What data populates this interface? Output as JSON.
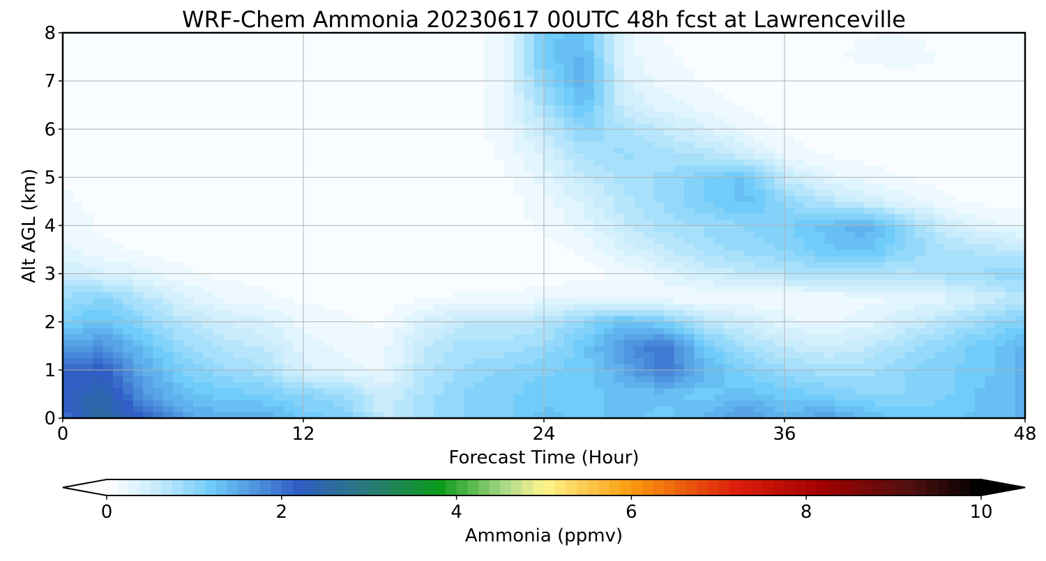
{
  "chart_data": {
    "type": "heatmap",
    "title": "WRF-Chem Ammonia  20230617 00UTC 48h fcst at Lawrenceville",
    "xlabel": "Forecast Time (Hour)",
    "ylabel": "Alt AGL (km)",
    "xlim": [
      0,
      48
    ],
    "ylim": [
      0,
      8
    ],
    "xticks": [
      0,
      12,
      24,
      36,
      48
    ],
    "yticks": [
      0,
      1,
      2,
      3,
      4,
      5,
      6,
      7,
      8
    ],
    "grid": true,
    "x": [
      0,
      2,
      4,
      6,
      8,
      10,
      12,
      14,
      16,
      18,
      20,
      22,
      24,
      26,
      28,
      30,
      32,
      34,
      36,
      38,
      40,
      42,
      44,
      46,
      48
    ],
    "y": [
      0,
      0.5,
      1,
      1.5,
      2,
      2.5,
      3,
      3.5,
      4,
      4.5,
      5,
      5.5,
      6,
      6.5,
      7,
      7.5,
      8
    ],
    "z": [
      [
        2.0,
        2.6,
        2.2,
        1.6,
        1.4,
        1.5,
        1.2,
        1.1,
        0.6,
        0.8,
        1.0,
        1.1,
        1.3,
        1.2,
        1.3,
        1.2,
        1.4,
        1.7,
        1.4,
        1.6,
        1.4,
        1.2,
        1.2,
        1.3,
        1.4
      ],
      [
        2.2,
        2.5,
        1.7,
        1.3,
        1.2,
        1.1,
        1.0,
        0.9,
        0.5,
        0.8,
        1.0,
        1.1,
        1.2,
        1.2,
        1.3,
        1.3,
        1.2,
        1.3,
        1.2,
        1.1,
        1.0,
        1.0,
        1.1,
        1.3,
        1.4
      ],
      [
        2.1,
        2.2,
        1.5,
        1.1,
        0.9,
        0.8,
        0.4,
        0.3,
        0.2,
        0.7,
        0.9,
        1.0,
        1.1,
        1.2,
        1.5,
        2.0,
        1.4,
        1.1,
        0.9,
        0.8,
        0.8,
        1.0,
        1.1,
        1.2,
        1.4
      ],
      [
        1.6,
        1.7,
        1.3,
        0.9,
        0.7,
        0.6,
        0.3,
        0.2,
        0.2,
        0.6,
        0.8,
        0.8,
        0.9,
        1.2,
        1.7,
        2.0,
        1.2,
        0.8,
        0.6,
        0.5,
        0.6,
        0.8,
        1.0,
        1.2,
        1.4
      ],
      [
        1.1,
        1.3,
        1.0,
        0.7,
        0.5,
        0.4,
        0.2,
        0.15,
        0.1,
        0.4,
        0.6,
        0.6,
        0.7,
        1.0,
        1.3,
        1.1,
        0.7,
        0.5,
        0.3,
        0.2,
        0.3,
        0.5,
        0.7,
        0.9,
        1.1
      ],
      [
        0.9,
        1.0,
        0.7,
        0.4,
        0.2,
        0.15,
        0.1,
        0.08,
        0.08,
        0.1,
        0.15,
        0.15,
        0.2,
        0.25,
        0.2,
        0.15,
        0.12,
        0.12,
        0.15,
        0.15,
        0.2,
        0.25,
        0.3,
        0.5,
        0.7
      ],
      [
        0.5,
        0.4,
        0.3,
        0.15,
        0.1,
        0.08,
        0.06,
        0.05,
        0.05,
        0.05,
        0.05,
        0.05,
        0.05,
        0.08,
        0.15,
        0.3,
        0.5,
        0.6,
        0.7,
        0.8,
        0.7,
        0.7,
        0.8,
        0.9,
        1.0
      ],
      [
        0.3,
        0.15,
        0.1,
        0.06,
        0.05,
        0.05,
        0.04,
        0.04,
        0.04,
        0.04,
        0.04,
        0.05,
        0.08,
        0.15,
        0.4,
        0.6,
        0.8,
        0.9,
        1.0,
        1.2,
        1.3,
        1.0,
        0.8,
        0.7,
        0.6
      ],
      [
        0.2,
        0.1,
        0.06,
        0.05,
        0.04,
        0.04,
        0.04,
        0.04,
        0.04,
        0.04,
        0.04,
        0.06,
        0.15,
        0.3,
        0.6,
        0.8,
        0.9,
        1.0,
        1.1,
        1.3,
        1.5,
        1.0,
        0.5,
        0.3,
        0.2
      ],
      [
        0.15,
        0.08,
        0.05,
        0.04,
        0.04,
        0.04,
        0.04,
        0.04,
        0.04,
        0.04,
        0.04,
        0.06,
        0.2,
        0.4,
        0.7,
        0.9,
        1.1,
        1.3,
        1.0,
        0.7,
        0.5,
        0.3,
        0.15,
        0.1,
        0.08
      ],
      [
        0.12,
        0.06,
        0.05,
        0.04,
        0.04,
        0.04,
        0.04,
        0.04,
        0.04,
        0.04,
        0.04,
        0.1,
        0.3,
        0.6,
        0.8,
        0.9,
        1.1,
        1.3,
        0.6,
        0.3,
        0.2,
        0.12,
        0.08,
        0.06,
        0.05
      ],
      [
        0.1,
        0.05,
        0.04,
        0.04,
        0.04,
        0.04,
        0.04,
        0.04,
        0.04,
        0.04,
        0.04,
        0.15,
        0.4,
        0.8,
        0.9,
        0.8,
        0.7,
        0.5,
        0.2,
        0.12,
        0.08,
        0.06,
        0.05,
        0.05,
        0.04
      ],
      [
        0.08,
        0.05,
        0.04,
        0.04,
        0.04,
        0.04,
        0.04,
        0.04,
        0.04,
        0.04,
        0.04,
        0.2,
        0.6,
        1.0,
        0.8,
        0.6,
        0.4,
        0.2,
        0.1,
        0.06,
        0.05,
        0.05,
        0.04,
        0.04,
        0.04
      ],
      [
        0.06,
        0.05,
        0.04,
        0.04,
        0.04,
        0.04,
        0.04,
        0.04,
        0.04,
        0.04,
        0.04,
        0.25,
        0.8,
        1.3,
        0.5,
        0.3,
        0.2,
        0.1,
        0.06,
        0.05,
        0.04,
        0.04,
        0.04,
        0.04,
        0.04
      ],
      [
        0.05,
        0.05,
        0.04,
        0.04,
        0.04,
        0.04,
        0.04,
        0.04,
        0.04,
        0.04,
        0.04,
        0.25,
        1.0,
        1.5,
        0.4,
        0.2,
        0.1,
        0.06,
        0.05,
        0.05,
        0.05,
        0.05,
        0.05,
        0.05,
        0.04
      ],
      [
        0.05,
        0.04,
        0.04,
        0.04,
        0.04,
        0.04,
        0.04,
        0.04,
        0.04,
        0.04,
        0.04,
        0.25,
        1.2,
        1.4,
        0.3,
        0.15,
        0.08,
        0.06,
        0.06,
        0.1,
        0.15,
        0.2,
        0.1,
        0.06,
        0.05
      ],
      [
        0.05,
        0.04,
        0.04,
        0.04,
        0.04,
        0.04,
        0.04,
        0.04,
        0.04,
        0.04,
        0.04,
        0.2,
        1.2,
        1.3,
        0.3,
        0.12,
        0.08,
        0.06,
        0.06,
        0.1,
        0.12,
        0.12,
        0.08,
        0.06,
        0.05
      ]
    ],
    "colorbar": {
      "label": "Ammonia  (ppmv)",
      "min": 0,
      "max": 10,
      "ticks": [
        0,
        2,
        4,
        6,
        8,
        10
      ],
      "extend": "both",
      "placement": "bottom",
      "stops": [
        {
          "v": 0,
          "c": "#ffffff"
        },
        {
          "v": 0.6,
          "c": "#c4ebfc"
        },
        {
          "v": 1.2,
          "c": "#6ecbfa"
        },
        {
          "v": 2.2,
          "c": "#2f5dc4"
        },
        {
          "v": 3.0,
          "c": "#2a7a7a"
        },
        {
          "v": 3.8,
          "c": "#0a9a1a"
        },
        {
          "v": 4.6,
          "c": "#b4dc8c"
        },
        {
          "v": 5.0,
          "c": "#fff58c"
        },
        {
          "v": 6.0,
          "c": "#fa9b0f"
        },
        {
          "v": 7.2,
          "c": "#dc1e0a"
        },
        {
          "v": 8.2,
          "c": "#a00000"
        },
        {
          "v": 9.2,
          "c": "#501010"
        },
        {
          "v": 10.0,
          "c": "#000000"
        }
      ]
    }
  }
}
